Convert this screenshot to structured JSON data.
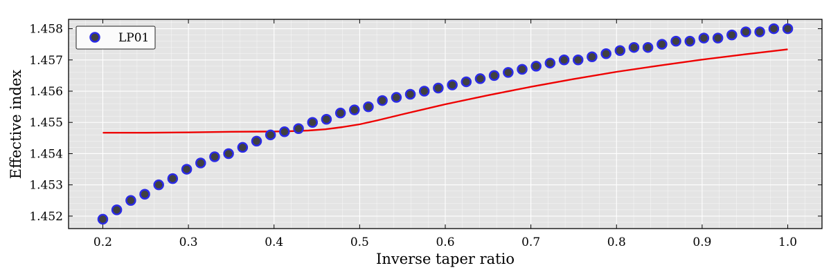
{
  "chart_data": {
    "type": "scatter",
    "title": "",
    "xlabel": "Inverse taper ratio",
    "ylabel": "Effective index",
    "xlim": [
      0.16,
      1.04
    ],
    "ylim": [
      1.4516,
      1.4583
    ],
    "xticks": [
      0.2,
      0.3,
      0.4,
      0.5,
      0.6,
      0.7,
      0.8,
      0.9,
      1.0
    ],
    "xtick_labels": [
      "0.2",
      "0.3",
      "0.4",
      "0.5",
      "0.6",
      "0.7",
      "0.8",
      "0.9",
      "1.0"
    ],
    "yticks": [
      1.452,
      1.453,
      1.454,
      1.455,
      1.456,
      1.457,
      1.458
    ],
    "ytick_labels": [
      "1.452",
      "1.453",
      "1.454",
      "1.455",
      "1.456",
      "1.457",
      "1.458"
    ],
    "grid": true,
    "background": "#e4e4e4",
    "legend_position": "top-left",
    "series": [
      {
        "name": "LP01",
        "kind": "scatter",
        "marker_fill": "#404040",
        "marker_edge": "#2a2ae6",
        "x": [
          0.2,
          0.2163,
          0.2327,
          0.249,
          0.2653,
          0.2816,
          0.298,
          0.3143,
          0.3306,
          0.3469,
          0.3633,
          0.3796,
          0.3959,
          0.4122,
          0.4286,
          0.4449,
          0.4612,
          0.4776,
          0.4939,
          0.5102,
          0.5265,
          0.5429,
          0.5592,
          0.5755,
          0.5918,
          0.6082,
          0.6245,
          0.6408,
          0.6571,
          0.6735,
          0.6898,
          0.7061,
          0.7224,
          0.7388,
          0.7551,
          0.7714,
          0.7878,
          0.8041,
          0.8204,
          0.8367,
          0.8531,
          0.8694,
          0.8857,
          0.902,
          0.9184,
          0.9347,
          0.951,
          0.9673,
          0.9837,
          1.0
        ],
        "y": [
          1.4519,
          1.4522,
          1.4525,
          1.4527,
          1.453,
          1.4532,
          1.4535,
          1.4537,
          1.4539,
          1.454,
          1.4542,
          1.4544,
          1.4546,
          1.4547,
          1.4548,
          1.455,
          1.4551,
          1.4553,
          1.4554,
          1.4555,
          1.4557,
          1.4558,
          1.4559,
          1.456,
          1.4561,
          1.4562,
          1.4563,
          1.4564,
          1.4565,
          1.4566,
          1.4567,
          1.4568,
          1.4569,
          1.457,
          1.457,
          1.4571,
          1.4572,
          1.4573,
          1.4574,
          1.4574,
          1.4575,
          1.4576,
          1.4576,
          1.4577,
          1.4577,
          1.4578,
          1.4579,
          1.4579,
          1.458,
          1.458
        ]
      },
      {
        "kind": "line",
        "color": "#ee0000",
        "x": [
          0.2,
          0.25,
          0.3,
          0.35,
          0.4,
          0.42,
          0.44,
          0.46,
          0.48,
          0.5,
          0.52,
          0.55,
          0.6,
          0.65,
          0.7,
          0.75,
          0.8,
          0.85,
          0.9,
          0.95,
          1.0
        ],
        "y": [
          1.45467,
          1.45467,
          1.45468,
          1.4547,
          1.45471,
          1.45472,
          1.45474,
          1.45478,
          1.45485,
          1.45494,
          1.45506,
          1.45526,
          1.45558,
          1.45587,
          1.45614,
          1.45639,
          1.45662,
          1.45682,
          1.45701,
          1.45718,
          1.45734
        ]
      }
    ]
  }
}
